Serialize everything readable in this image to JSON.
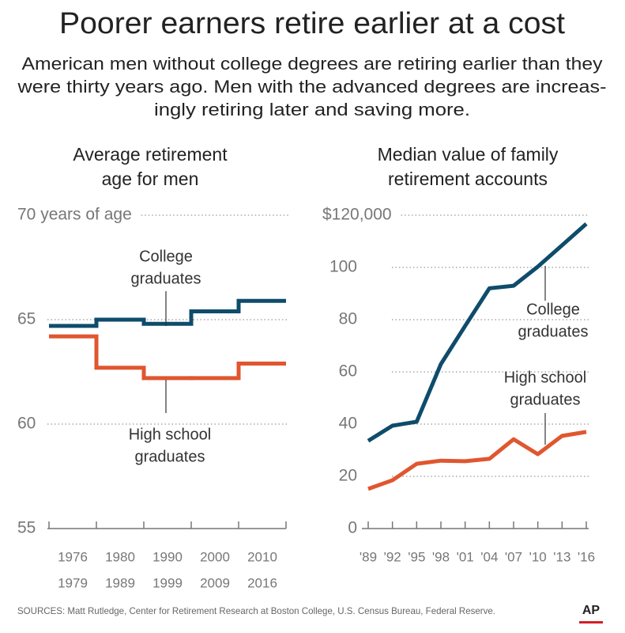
{
  "header": {
    "title": "Poorer earners retire earlier at a cost",
    "subtitle": [
      "American men without college degrees are retiring earlier than they",
      "were thirty years ago. Men with the advanced degrees are increas-",
      "ingly retiring later and saving more."
    ]
  },
  "chart_data": [
    {
      "type": "step",
      "title": [
        "Average retirement",
        "age for men"
      ],
      "categories": [
        [
          "1976",
          "1979"
        ],
        [
          "1980",
          "1989"
        ],
        [
          "1990",
          "1999"
        ],
        [
          "2000",
          "2009"
        ],
        [
          "2010",
          "2016"
        ]
      ],
      "series": [
        {
          "name": [
            "College",
            "graduates"
          ],
          "color": "#0f4c6b",
          "values": [
            64.7,
            65.0,
            64.8,
            65.4,
            65.9
          ]
        },
        {
          "name": [
            "High school",
            "graduates"
          ],
          "color": "#e0562f",
          "values": [
            64.2,
            62.7,
            62.2,
            62.2,
            62.9
          ]
        }
      ],
      "ylim": [
        55,
        70
      ],
      "yticks": [
        55,
        60,
        65,
        {
          "value": 70,
          "label": "70 years of age"
        }
      ],
      "grid": true
    },
    {
      "type": "line",
      "title": [
        "Median value of family",
        "retirement accounts"
      ],
      "categories": [
        "'89",
        "'92",
        "'95",
        "'98",
        "'01",
        "'04",
        "'07",
        "'10",
        "'13",
        "'16"
      ],
      "series": [
        {
          "name": [
            "College",
            "graduates"
          ],
          "color": "#0f4c6b",
          "values": [
            33.6,
            39.4,
            40.9,
            63,
            77.6,
            92,
            93,
            100.3,
            108.5,
            116.7
          ]
        },
        {
          "name": [
            "High school",
            "graduates"
          ],
          "color": "#e0562f",
          "values": [
            15.2,
            18.5,
            24.8,
            26,
            25.8,
            26.7,
            34.2,
            28.5,
            35.5,
            37
          ]
        }
      ],
      "ylim": [
        0,
        120
      ],
      "yticks": [
        0,
        20,
        40,
        60,
        80,
        100,
        {
          "value": 120,
          "label": "$120,000"
        }
      ],
      "grid": true
    }
  ],
  "footer": {
    "sources": "SOURCES:  Matt Rutledge, Center for Retirement Research at Boston College, U.S. Census Bureau,  Federal Reserve.",
    "logo": "AP"
  }
}
